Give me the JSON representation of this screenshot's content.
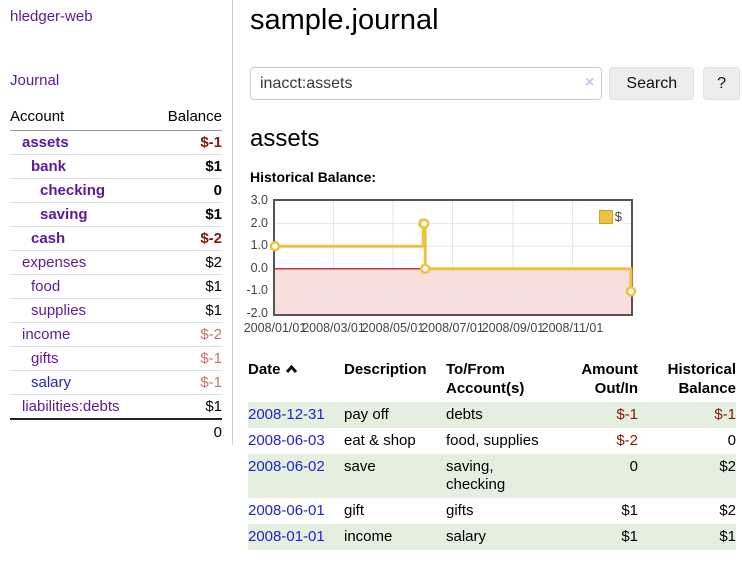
{
  "app_title": "hledger-web",
  "sidebar": {
    "journal_link": "Journal",
    "account_header": "Account",
    "balance_header": "Balance",
    "accounts": [
      {
        "name": "assets",
        "balance": "$-1",
        "depth": 1,
        "bold": true,
        "tone": "neg-strong"
      },
      {
        "name": "bank",
        "balance": "$1",
        "depth": 2,
        "bold": true,
        "tone": "pos"
      },
      {
        "name": "checking",
        "balance": "0",
        "depth": 3,
        "bold": true,
        "tone": "pos"
      },
      {
        "name": "saving",
        "balance": "$1",
        "depth": 3,
        "bold": true,
        "tone": "pos"
      },
      {
        "name": "cash",
        "balance": "$-2",
        "depth": 2,
        "bold": true,
        "tone": "neg-strong"
      },
      {
        "name": "expenses",
        "balance": "$2",
        "depth": 1,
        "bold": false,
        "tone": "pos"
      },
      {
        "name": "food",
        "balance": "$1",
        "depth": 2,
        "bold": false,
        "tone": "pos"
      },
      {
        "name": "supplies",
        "balance": "$1",
        "depth": 2,
        "bold": false,
        "tone": "pos"
      },
      {
        "name": "income",
        "balance": "$-2",
        "depth": 1,
        "bold": false,
        "tone": "neg-soft"
      },
      {
        "name": "gifts",
        "balance": "$-1",
        "depth": 2,
        "bold": false,
        "tone": "neg-soft"
      },
      {
        "name": "salary",
        "balance": "$-1",
        "depth": 2,
        "bold": false,
        "tone": "neg-soft",
        "link_color": "blue"
      },
      {
        "name": "liabilities:debts",
        "balance": "$1",
        "depth": 1,
        "bold": false,
        "tone": "pos"
      }
    ],
    "total": "0"
  },
  "header": {
    "title": "sample.journal"
  },
  "search": {
    "value": "inacct:assets",
    "clear_icon": "×",
    "search_button": "Search",
    "help_button": "?"
  },
  "account_page": {
    "heading": "assets",
    "chart_title": "Historical Balance:"
  },
  "chart_data": {
    "type": "line",
    "title": "Historical Balance:",
    "x_start": "2008-01-01",
    "x_end": "2008-12-31",
    "ylim": [
      -2,
      3
    ],
    "yticks": [
      "3.0",
      "2.0",
      "1.0",
      "0.0",
      "-1.0",
      "-2.0"
    ],
    "xticks": [
      {
        "label": "2008/01/01",
        "date": "2008-01-01"
      },
      {
        "label": "2008/03/01",
        "date": "2008-03-01"
      },
      {
        "label": "2008/05/01",
        "date": "2008-05-01"
      },
      {
        "label": "2008/07/01",
        "date": "2008-07-01"
      },
      {
        "label": "2008/09/01",
        "date": "2008-09-01"
      },
      {
        "label": "2008/11/01",
        "date": "2008-11-01"
      }
    ],
    "grid": true,
    "legend_position": "top-right",
    "legend": {
      "label": "$",
      "color": "#edc240"
    },
    "negative_region_color": "#f9dede",
    "zero_line_color": "#aa0000",
    "series": [
      {
        "name": "$",
        "color": "#edc240",
        "step": true,
        "points": [
          {
            "date": "2008-01-01",
            "value": 1
          },
          {
            "date": "2008-06-01",
            "value": 2
          },
          {
            "date": "2008-06-02",
            "value": 2
          },
          {
            "date": "2008-06-03",
            "value": 0
          },
          {
            "date": "2008-12-31",
            "value": -1
          }
        ]
      }
    ]
  },
  "register": {
    "columns": [
      {
        "label": "Date",
        "sort": "asc"
      },
      {
        "label": "Description"
      },
      {
        "label": "To/From Account(s)"
      },
      {
        "label": "Amount Out/In"
      },
      {
        "label": "Historical Balance"
      }
    ],
    "rows": [
      {
        "date": "2008-12-31",
        "description": "pay off",
        "accounts": "debts",
        "amount": "$-1",
        "amount_neg": true,
        "balance": "$-1",
        "balance_neg": true
      },
      {
        "date": "2008-06-03",
        "description": "eat & shop",
        "accounts": "food, supplies",
        "amount": "$-2",
        "amount_neg": true,
        "balance": "0",
        "balance_neg": false
      },
      {
        "date": "2008-06-02",
        "description": "save",
        "accounts": "saving, checking",
        "amount": "0",
        "amount_neg": false,
        "balance": "$2",
        "balance_neg": false
      },
      {
        "date": "2008-06-01",
        "description": "gift",
        "accounts": "gifts",
        "amount": "$1",
        "amount_neg": false,
        "balance": "$2",
        "balance_neg": false
      },
      {
        "date": "2008-01-01",
        "description": "income",
        "accounts": "salary",
        "amount": "$1",
        "amount_neg": false,
        "balance": "$1",
        "balance_neg": false
      }
    ]
  },
  "colors": {
    "link_purple": "#5b1a9b",
    "link_blue": "#2222cc",
    "negative_strong": "#8b1508",
    "negative_soft": "#c4736c",
    "row_stripe_green": "#e4efe0",
    "series_gold": "#edc240"
  }
}
